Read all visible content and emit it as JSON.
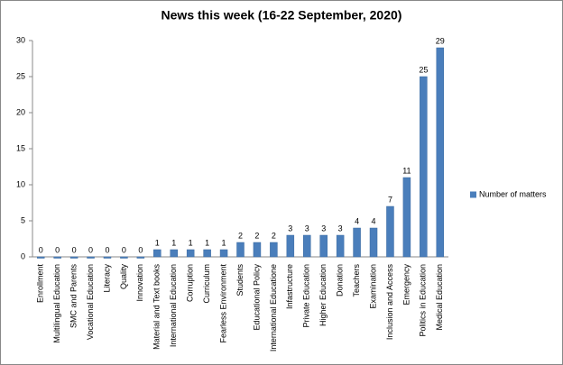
{
  "chart_data": {
    "type": "bar",
    "title": "News this week (16-22 September, 2020)",
    "categories": [
      "Enrollment",
      "Multilingual Education",
      "SMC and Parents",
      "Vocational Education",
      "Literacy",
      "Quality",
      "Innovation",
      "Material and Text books",
      "International Education",
      "Corruption",
      "Curriculum",
      "Fearless Environment",
      "Students",
      "Educational Policy",
      "International Educatione",
      "Infastructure",
      "Private Education",
      "Higher Education",
      "Donation",
      "Teachers",
      "Examination",
      "Inclusion and Access",
      "Emergency",
      "Politics in Education",
      "Medical Education"
    ],
    "series": [
      {
        "name": "Number of matters",
        "color": "#4a7ebb",
        "values": [
          0,
          0,
          0,
          0,
          0,
          0,
          0,
          1,
          1,
          1,
          1,
          1,
          2,
          2,
          2,
          3,
          3,
          3,
          3,
          4,
          4,
          7,
          11,
          25,
          29
        ]
      }
    ],
    "ylim": [
      0,
      30
    ],
    "yticks": [
      0,
      5,
      10,
      15,
      20,
      25,
      30
    ],
    "grid": false,
    "legend": "right"
  }
}
